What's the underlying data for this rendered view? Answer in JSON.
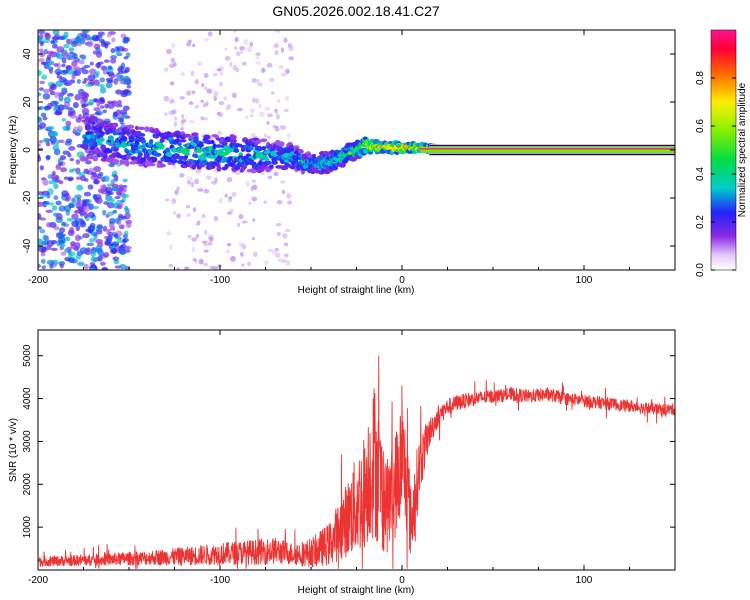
{
  "title": "GN05.2026.002.18.41.C27",
  "colors": {
    "snr_line": "#ee3333",
    "frame": "#000000",
    "spectrum_ridge": "#ee3344"
  },
  "chart_data": [
    {
      "type": "heatmap",
      "name": "spectrogram",
      "xlabel": "Height of straight line (km)",
      "ylabel": "Frequency (Hz)",
      "xlim": [
        -200,
        150
      ],
      "ylim": [
        -50,
        50
      ],
      "xticks": [
        -200,
        -100,
        0,
        100
      ],
      "xtick_labels": [
        "-200",
        "-100",
        "0",
        "100"
      ],
      "yticks": [
        -40,
        -20,
        0,
        20,
        40
      ],
      "ytick_labels": [
        "-40",
        "-20",
        "0",
        "20",
        "40"
      ],
      "colorbar": {
        "label": "Normalized spectral amplitude",
        "range": [
          0,
          1
        ],
        "ticks": [
          0,
          0.2,
          0.4,
          0.6,
          0.8
        ],
        "tick_labels": [
          "0.0",
          "0.2",
          "0.4",
          "0.6",
          "0.8"
        ]
      },
      "ridge": {
        "x": [
          -170,
          -150,
          -120,
          -100,
          -80,
          -60,
          -50,
          -40,
          -30,
          -20,
          -10,
          0,
          10,
          20,
          50,
          100,
          150
        ],
        "frequency": [
          5,
          2,
          0,
          -1,
          -2,
          -3,
          -6,
          -5,
          -2,
          2,
          1,
          1,
          1,
          0.5,
          0.5,
          0.5,
          0.5
        ],
        "spread": [
          9,
          8,
          7,
          7,
          7,
          5,
          4,
          4,
          4,
          3,
          2,
          2,
          1.5,
          1,
          1,
          1,
          1
        ],
        "peak_amplitude": [
          0.35,
          0.38,
          0.45,
          0.45,
          0.42,
          0.4,
          0.4,
          0.42,
          0.5,
          0.75,
          0.8,
          0.9,
          0.9,
          0.92,
          0.95,
          0.95,
          0.95
        ]
      },
      "noise": {
        "x_start": -200,
        "x_end": -150,
        "scatter_x_start": -130,
        "scatter_x_end": -60,
        "amplitude": [
          0.1,
          0.35
        ]
      }
    },
    {
      "type": "line",
      "name": "snr",
      "xlabel": "Height of straight line (km)",
      "ylabel": "SNR (10 * v/v)",
      "xlim": [
        -200,
        150
      ],
      "ylim": [
        0,
        5600
      ],
      "xticks": [
        -200,
        -100,
        0,
        100
      ],
      "xtick_labels": [
        "-200",
        "-100",
        "0",
        "100"
      ],
      "yticks": [
        1000,
        2000,
        3000,
        4000,
        5000
      ],
      "ytick_labels": [
        "1000",
        "2000",
        "3000",
        "4000",
        "5000"
      ],
      "series": [
        {
          "name": "SNR",
          "x": [
            -200,
            -180,
            -160,
            -140,
            -120,
            -100,
            -80,
            -70,
            -60,
            -50,
            -40,
            -35,
            -30,
            -25,
            -20,
            -18,
            -15,
            -12,
            -10,
            -8,
            -5,
            -3,
            0,
            3,
            5,
            7,
            10,
            15,
            20,
            25,
            30,
            40,
            50,
            60,
            70,
            80,
            90,
            100,
            110,
            120,
            130,
            140,
            150
          ],
          "y": [
            200,
            220,
            250,
            280,
            320,
            380,
            420,
            450,
            380,
            400,
            600,
            900,
            1200,
            1500,
            1900,
            2300,
            2600,
            2000,
            1700,
            1500,
            1800,
            2100,
            2600,
            2000,
            1000,
            1700,
            2500,
            3200,
            3600,
            3800,
            3900,
            4000,
            4050,
            4100,
            4050,
            4100,
            4000,
            3950,
            3900,
            3850,
            3800,
            3750,
            3750
          ],
          "noise_amplitude": [
            120,
            130,
            150,
            170,
            220,
            260,
            300,
            320,
            260,
            350,
            500,
            700,
            900,
            1200,
            1400,
            1600,
            1900,
            1500,
            1300,
            1100,
            1200,
            1300,
            1500,
            1200,
            900,
            900,
            700,
            350,
            250,
            200,
            180,
            170,
            160,
            160,
            160,
            160,
            150,
            150,
            150,
            140,
            140,
            140,
            140
          ]
        }
      ]
    }
  ]
}
